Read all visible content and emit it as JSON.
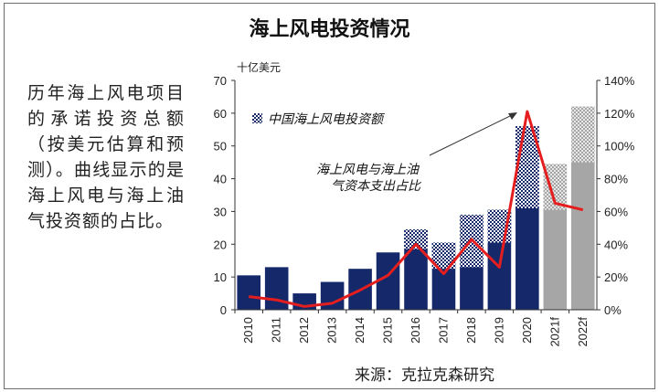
{
  "title": "海上风电投资情况",
  "side_text": "历年海上风电项目的承诺投资总额（按美元估算和预测）。曲线显示的是海上风电与海上油气投资额的占比。",
  "source": "来源：克拉克森研究",
  "colors": {
    "bar": "#14286a",
    "forecast_bar": "#a6a6a6",
    "line": "#e41e1e",
    "axis": "#333333"
  },
  "chart_data": {
    "type": "bar",
    "categories": [
      "2010",
      "2011",
      "2012",
      "2013",
      "2014",
      "2015",
      "2016",
      "2017",
      "2018",
      "2019",
      "2020",
      "2021f",
      "2022f"
    ],
    "series": [
      {
        "name": "中国海上风电投资额",
        "values": [
          0,
          0,
          0,
          0,
          0,
          0,
          6,
          8,
          16,
          10,
          25,
          14,
          17
        ]
      },
      {
        "name": "",
        "values": [
          10.5,
          13,
          5,
          8.5,
          12.5,
          17.5,
          24.5,
          20.5,
          29,
          30.5,
          56,
          44.5,
          62
        ]
      },
      {
        "name": "海上风电与海上油气资本支出占比",
        "axis": "right",
        "values": [
          8,
          6,
          2,
          4,
          12,
          21,
          40,
          22,
          43,
          26,
          121,
          65,
          61
        ]
      }
    ],
    "forecast": [
      "2021f",
      "2022f"
    ],
    "ylabel": "十亿美元",
    "ylim": [
      0,
      70
    ],
    "yticks": [
      0,
      10,
      20,
      30,
      40,
      50,
      60,
      70
    ],
    "y2lim": [
      0,
      140
    ],
    "y2ticks": [
      "0%",
      "20%",
      "40%",
      "60%",
      "80%",
      "100%",
      "120%",
      "140%"
    ],
    "legend": "中国海上风电投资额",
    "annotation": [
      "海上风电与海上油",
      "气资本支出占比"
    ]
  }
}
